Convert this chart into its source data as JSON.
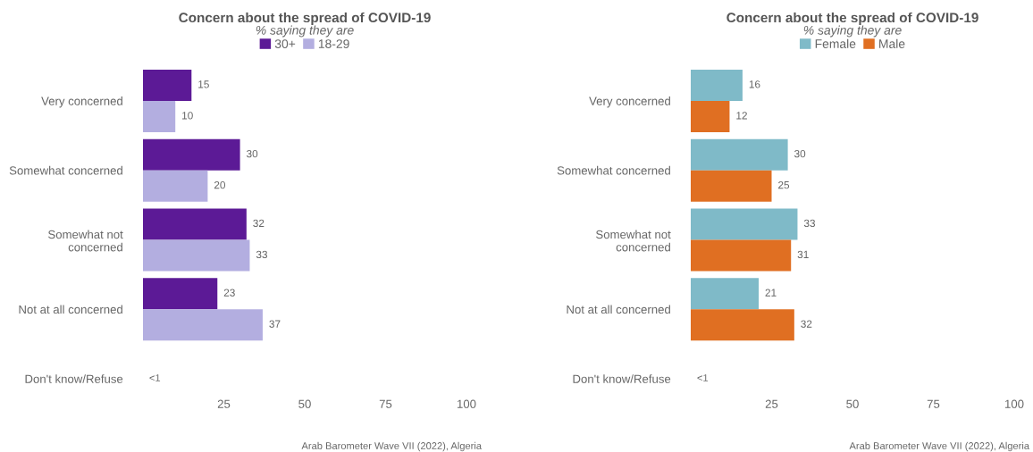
{
  "chart_data": [
    {
      "type": "bar",
      "orientation": "horizontal",
      "title": "Concern about the spread of COVID-19",
      "subtitle": "% saying they are",
      "categories": [
        "Very concerned",
        "Somewhat concerned",
        "Somewhat not\nconcerned",
        "Not at all concerned",
        "Don't know/Refuse"
      ],
      "series": [
        {
          "name": "30+",
          "color": "#5c1a96",
          "values": [
            15,
            30,
            32,
            23,
            null
          ]
        },
        {
          "name": "18-29",
          "color": "#b3aee0",
          "values": [
            10,
            20,
            33,
            37,
            null
          ]
        }
      ],
      "xlim": [
        0,
        100
      ],
      "xticks": [
        25,
        50,
        75,
        100
      ],
      "data_labels": true,
      "legend": "top",
      "grid": false,
      "annotations": [
        "<1",
        "Arab Barometer Wave VII (2022), Algeria"
      ]
    },
    {
      "type": "bar",
      "orientation": "horizontal",
      "title": "Concern about the spread of COVID-19",
      "subtitle": "% saying they are",
      "categories": [
        "Very concerned",
        "Somewhat concerned",
        "Somewhat not\nconcerned",
        "Not at all concerned",
        "Don't know/Refuse"
      ],
      "series": [
        {
          "name": "Female",
          "color": "#7fbac8",
          "values": [
            16,
            30,
            33,
            21,
            null
          ]
        },
        {
          "name": "Male",
          "color": "#e06f22",
          "values": [
            12,
            25,
            31,
            32,
            null
          ]
        }
      ],
      "xlim": [
        0,
        100
      ],
      "xticks": [
        25,
        50,
        75,
        100
      ],
      "data_labels": true,
      "legend": "top",
      "grid": false,
      "annotations": [
        "<1",
        "Arab Barometer Wave VII (2022), Algeria"
      ]
    }
  ]
}
